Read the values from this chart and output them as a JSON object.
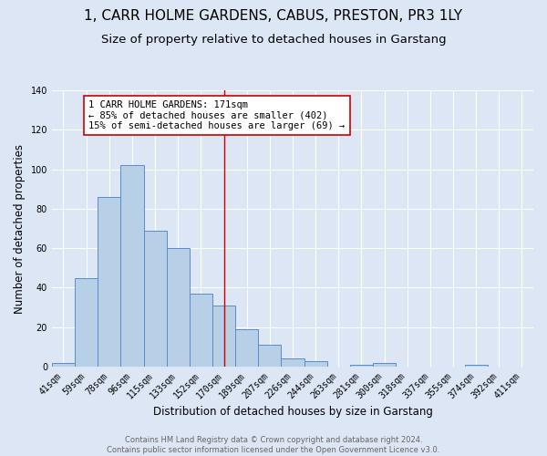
{
  "title_line1": "1, CARR HOLME GARDENS, CABUS, PRESTON, PR3 1LY",
  "title_line2": "Size of property relative to detached houses in Garstang",
  "xlabel": "Distribution of detached houses by size in Garstang",
  "ylabel": "Number of detached properties",
  "bin_labels": [
    "41sqm",
    "59sqm",
    "78sqm",
    "96sqm",
    "115sqm",
    "133sqm",
    "152sqm",
    "170sqm",
    "189sqm",
    "207sqm",
    "226sqm",
    "244sqm",
    "263sqm",
    "281sqm",
    "300sqm",
    "318sqm",
    "337sqm",
    "355sqm",
    "374sqm",
    "392sqm",
    "411sqm"
  ],
  "bar_values": [
    2,
    45,
    86,
    102,
    69,
    60,
    37,
    31,
    19,
    11,
    4,
    3,
    0,
    1,
    2,
    0,
    0,
    0,
    1,
    0,
    0
  ],
  "bar_color": "#b8cfe8",
  "bar_edge_color": "#5b8cc8",
  "background_color": "#dce6f5",
  "grid_color": "#ffffff",
  "vline_color": "#cc0000",
  "annotation_text": "1 CARR HOLME GARDENS: 171sqm\n← 85% of detached houses are smaller (402)\n15% of semi-detached houses are larger (69) →",
  "annotation_box_color": "#ffffff",
  "annotation_box_edge": "#cc0000",
  "ylim": [
    0,
    140
  ],
  "yticks": [
    0,
    20,
    40,
    60,
    80,
    100,
    120,
    140
  ],
  "footnote": "Contains HM Land Registry data © Crown copyright and database right 2024.\nContains public sector information licensed under the Open Government Licence v3.0.",
  "title_fontsize": 11,
  "subtitle_fontsize": 9.5,
  "axis_label_fontsize": 8.5,
  "tick_fontsize": 7,
  "annotation_fontsize": 7.5,
  "footnote_fontsize": 6,
  "footnote_color": "#666666"
}
